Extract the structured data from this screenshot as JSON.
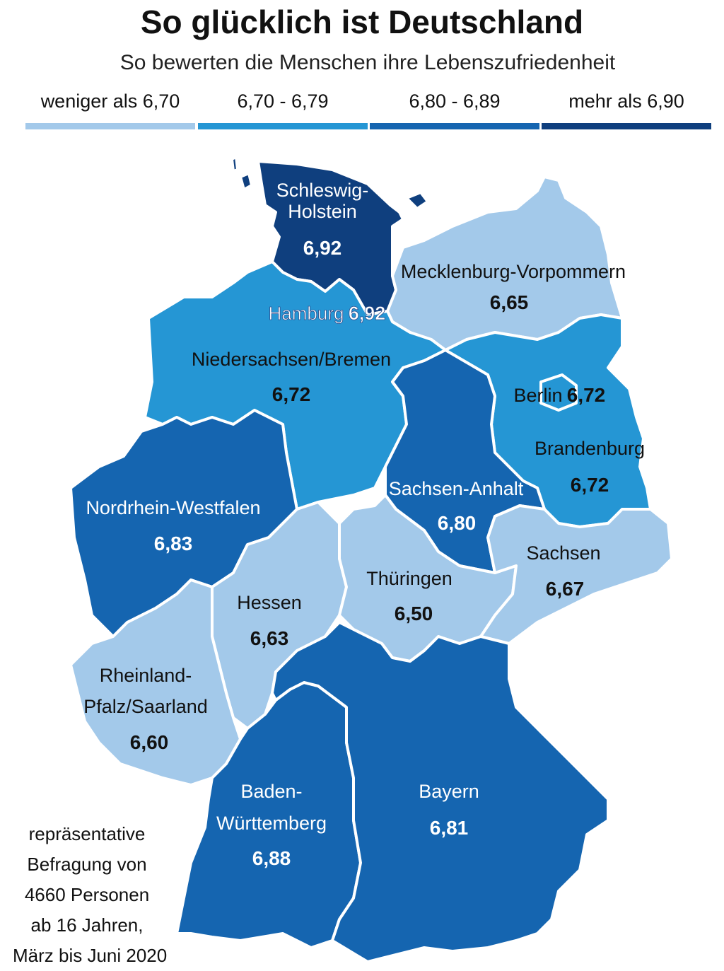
{
  "title": "So glücklich ist Deutschland",
  "subtitle": "So bewerten die Menschen ihre Lebenszufriedenheit",
  "legend": [
    {
      "label": "weniger als 6,70",
      "color": "#a3c9ea"
    },
    {
      "label": "6,70 - 6,79",
      "color": "#2596d4"
    },
    {
      "label": "6,80 - 6,89",
      "color": "#1565b0"
    },
    {
      "label": "mehr als 6,90",
      "color": "#0f3f7e"
    }
  ],
  "regions": {
    "schleswig_holstein": {
      "name_line1": "Schleswig-",
      "name_line2": "Holstein",
      "value": "6,92"
    },
    "hamburg": {
      "name": "Hamburg",
      "value": "6,92"
    },
    "mecklenburg_vorpommern": {
      "name": "Mecklenburg-Vorpommern",
      "value": "6,65"
    },
    "niedersachsen_bremen": {
      "name": "Niedersachsen/Bremen",
      "value": "6,72"
    },
    "berlin": {
      "name": "Berlin",
      "value": "6,72"
    },
    "brandenburg": {
      "name": "Brandenburg",
      "value": "6,72"
    },
    "sachsen_anhalt": {
      "name": "Sachsen-Anhalt",
      "value": "6,80"
    },
    "nordrhein_westfalen": {
      "name": "Nordrhein-Westfalen",
      "value": "6,83"
    },
    "sachsen": {
      "name": "Sachsen",
      "value": "6,67"
    },
    "thueringen": {
      "name": "Thüringen",
      "value": "6,50"
    },
    "hessen": {
      "name": "Hessen",
      "value": "6,63"
    },
    "rheinland_pfalz_saarland": {
      "name_line1": "Rheinland-",
      "name_line2": "Pfalz/Saarland",
      "value": "6,60"
    },
    "baden_wuerttemberg": {
      "name_line1": "Baden-",
      "name_line2": "Württemberg",
      "value": "6,88"
    },
    "bayern": {
      "name": "Bayern",
      "value": "6,81"
    }
  },
  "footnote": [
    "repräsentative",
    "Befragung von",
    "4660 Personen",
    "ab 16 Jahren,",
    "März bis Juni 2020"
  ]
}
